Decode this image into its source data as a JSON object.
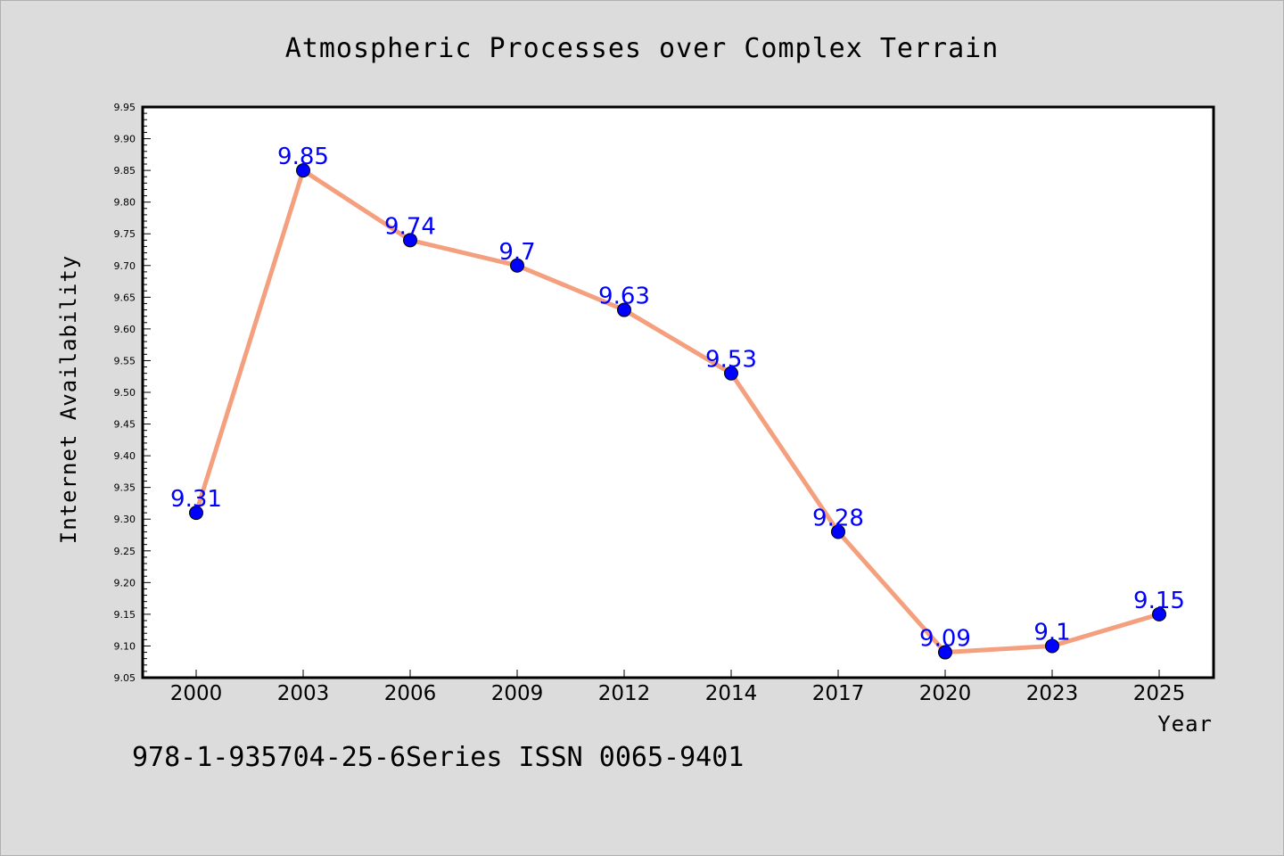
{
  "footnote": "978-1-935704-25-6Series ISSN 0065-9401",
  "colors": {
    "background": "#dcdcdc",
    "plot_background": "#ffffff",
    "line": "#f4a07f",
    "marker": "#0000ff",
    "data_label": "#0000ff"
  },
  "chart_data": {
    "type": "line",
    "title": "Atmospheric Processes over Complex Terrain",
    "xlabel": "Year",
    "ylabel": "Internet Availability",
    "categories": [
      "2000",
      "2003",
      "2006",
      "2009",
      "2012",
      "2014",
      "2017",
      "2020",
      "2023",
      "2025"
    ],
    "series": [
      {
        "values": [
          9.31,
          9.85,
          9.74,
          9.7,
          9.63,
          9.53,
          9.28,
          9.09,
          9.1,
          9.15
        ],
        "data_labels": [
          "9.31",
          "9.85",
          "9.74",
          "9.7",
          "9.63",
          "9.53",
          "9.28",
          "9.09",
          "9.1",
          "9.15"
        ]
      }
    ],
    "ylim": [
      9.05,
      9.95
    ],
    "yticks": [
      "9.05",
      "9.10",
      "9.15",
      "9.20",
      "9.25",
      "9.30",
      "9.35",
      "9.40",
      "9.45",
      "9.50",
      "9.55",
      "9.60",
      "9.65",
      "9.70",
      "9.75",
      "9.80",
      "9.85",
      "9.90",
      "9.95"
    ],
    "grid": false,
    "legend": "none"
  }
}
